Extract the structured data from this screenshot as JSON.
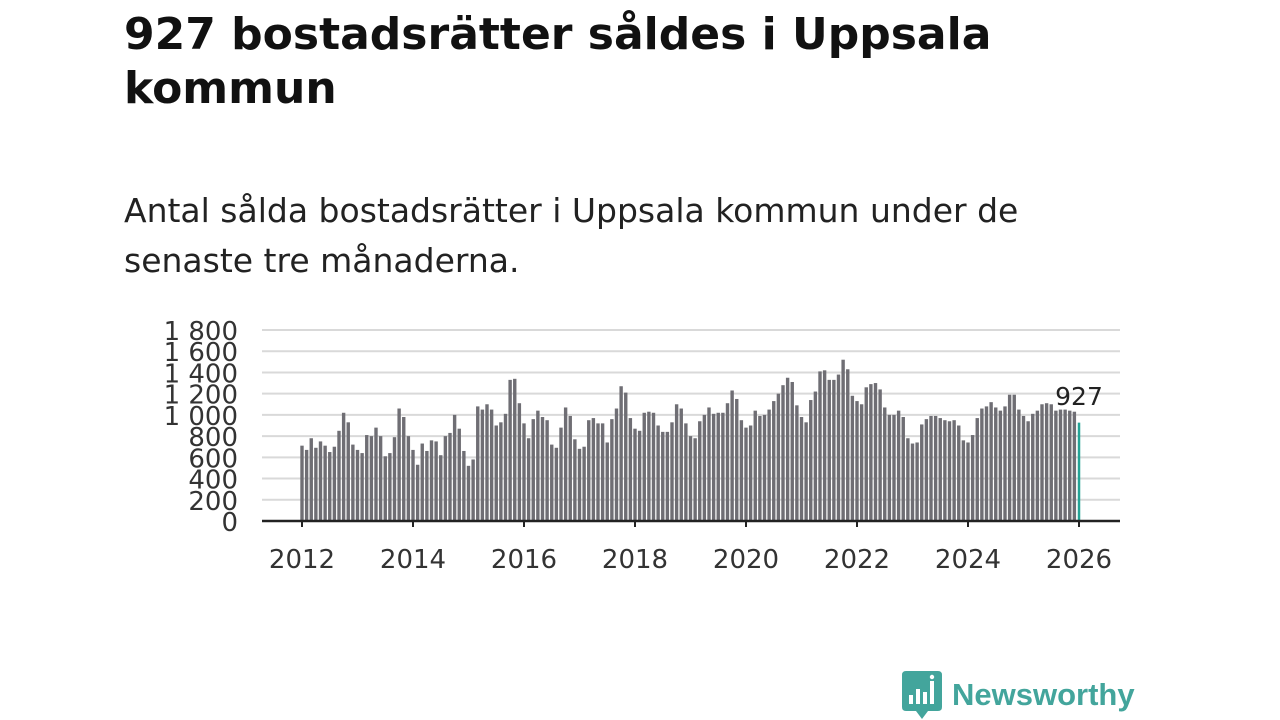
{
  "header": {
    "title": "927 bostadsrätter såldes i Uppsala kommun",
    "subtitle": "Antal sålda bostadsrätter i Uppsala kommun under de senaste tre månaderna."
  },
  "brand": {
    "name": "Newsworthy",
    "color": "#43a59c"
  },
  "colors": {
    "bar": "#6f6e74",
    "highlight": "#24a396",
    "grid": "#d9d9d9",
    "axis": "#222222",
    "text": "#333333"
  },
  "chart_data": {
    "type": "bar",
    "title": "927 bostadsrätter såldes i Uppsala kommun",
    "xlabel": "",
    "ylabel": "",
    "ylim": [
      0,
      1800
    ],
    "yticks": [
      0,
      200,
      400,
      600,
      800,
      1000,
      1200,
      1400,
      1600,
      1800
    ],
    "ytick_labels": [
      "0",
      "200",
      "400",
      "600",
      "800",
      "1 000",
      "1 200",
      "1 400",
      "1 600",
      "1 800"
    ],
    "xtick_labels": [
      "2012",
      "2014",
      "2016",
      "2018",
      "2020",
      "2022",
      "2024",
      "2026"
    ],
    "start": "2012-01",
    "end": "2026-01",
    "values": [
      710,
      670,
      780,
      690,
      750,
      710,
      650,
      700,
      850,
      1020,
      930,
      720,
      670,
      640,
      810,
      800,
      880,
      800,
      610,
      640,
      790,
      1060,
      980,
      800,
      670,
      530,
      730,
      660,
      760,
      750,
      620,
      800,
      830,
      1000,
      870,
      660,
      520,
      580,
      1080,
      1050,
      1100,
      1050,
      900,
      930,
      1010,
      1330,
      1340,
      1110,
      920,
      780,
      960,
      1040,
      980,
      950,
      720,
      690,
      880,
      1070,
      990,
      770,
      680,
      700,
      950,
      970,
      920,
      920,
      740,
      960,
      1060,
      1270,
      1210,
      970,
      870,
      850,
      1020,
      1030,
      1020,
      900,
      840,
      840,
      930,
      1100,
      1060,
      920,
      800,
      780,
      940,
      1000,
      1070,
      1010,
      1020,
      1020,
      1110,
      1230,
      1150,
      950,
      880,
      900,
      1040,
      990,
      1000,
      1050,
      1130,
      1200,
      1280,
      1350,
      1310,
      1090,
      980,
      930,
      1140,
      1220,
      1410,
      1420,
      1330,
      1330,
      1380,
      1520,
      1430,
      1180,
      1130,
      1100,
      1260,
      1290,
      1300,
      1240,
      1070,
      1000,
      1000,
      1040,
      980,
      780,
      730,
      740,
      910,
      960,
      990,
      990,
      970,
      950,
      940,
      950,
      900,
      760,
      740,
      810,
      970,
      1060,
      1080,
      1120,
      1070,
      1040,
      1080,
      1190,
      1190,
      1050,
      990,
      940,
      1010,
      1040,
      1100,
      1110,
      1100,
      1040,
      1050,
      1050,
      1040,
      1030,
      927
    ],
    "highlight": {
      "label": "927",
      "value": 927,
      "date": "2026-01"
    }
  }
}
